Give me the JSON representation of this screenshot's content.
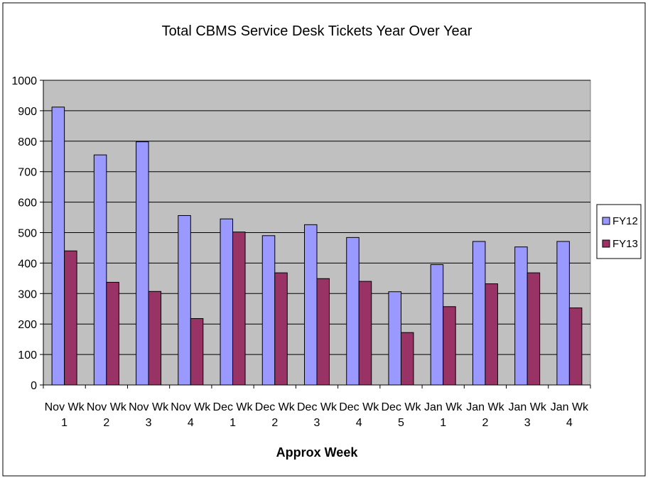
{
  "chart_data": {
    "type": "bar",
    "title": "Total CBMS Service Desk Tickets Year Over Year",
    "xlabel": "Approx Week",
    "ylabel": "",
    "ylim": [
      0,
      1000
    ],
    "yticks": [
      "0",
      "100",
      "200",
      "300",
      "400",
      "500",
      "600",
      "700",
      "800",
      "900",
      "1000"
    ],
    "categories": [
      [
        "Nov Wk",
        "1"
      ],
      [
        "Nov Wk",
        "2"
      ],
      [
        "Nov Wk",
        "3"
      ],
      [
        "Nov Wk",
        "4"
      ],
      [
        "Dec Wk",
        "1"
      ],
      [
        "Dec Wk",
        "2"
      ],
      [
        "Dec Wk",
        "3"
      ],
      [
        "Dec Wk",
        "4"
      ],
      [
        "Dec Wk",
        "5"
      ],
      [
        "Jan Wk",
        "1"
      ],
      [
        "Jan Wk",
        "2"
      ],
      [
        "Jan Wk",
        "3"
      ],
      [
        "Jan Wk",
        "4"
      ]
    ],
    "series": [
      {
        "name": "FY12",
        "color": "#9999FF",
        "values": [
          912,
          755,
          798,
          556,
          545,
          490,
          526,
          484,
          306,
          395,
          471,
          453,
          471
        ]
      },
      {
        "name": "FY13",
        "color": "#993366",
        "values": [
          440,
          337,
          307,
          218,
          502,
          368,
          349,
          340,
          172,
          257,
          332,
          368,
          253
        ]
      }
    ],
    "grid": true,
    "legend_position": "right",
    "plot_background": "#C0C0C0"
  }
}
